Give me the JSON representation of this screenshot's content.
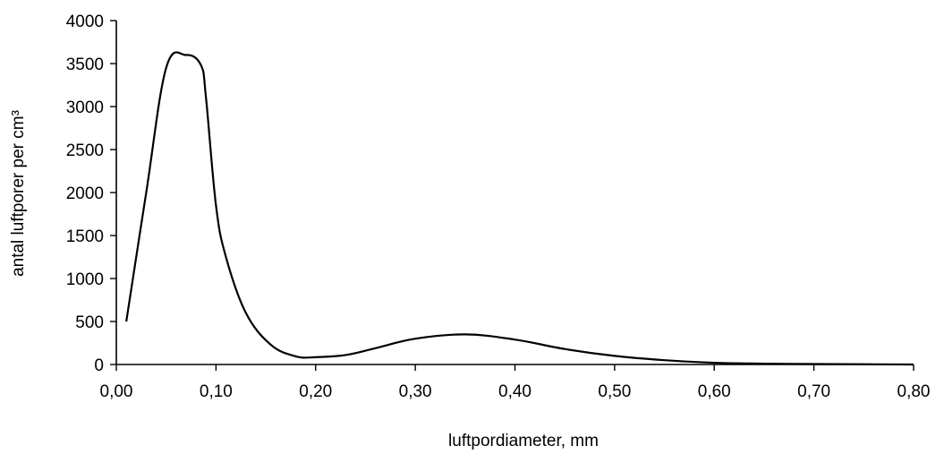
{
  "chart_data": {
    "type": "line",
    "title": "",
    "xlabel": "luftpordiameter, mm",
    "ylabel": "antal luftporer per cm³",
    "xlim": [
      0,
      0.8
    ],
    "ylim": [
      0,
      4000
    ],
    "x_ticks": [
      "0,00",
      "0,10",
      "0,20",
      "0,30",
      "0,40",
      "0,50",
      "0,60",
      "0,70",
      "0,80"
    ],
    "y_ticks": [
      "0",
      "500",
      "1000",
      "1500",
      "2000",
      "2500",
      "3000",
      "3500",
      "4000"
    ],
    "grid": false,
    "legend": "none",
    "line_color": "#000000",
    "series": [
      {
        "x": [
          0.01,
          0.03,
          0.05,
          0.07,
          0.085,
          0.09,
          0.1,
          0.11,
          0.13,
          0.155,
          0.18,
          0.2,
          0.23,
          0.26,
          0.3,
          0.35,
          0.4,
          0.45,
          0.5,
          0.55,
          0.6,
          0.65,
          0.7,
          0.75,
          0.8
        ],
        "values": [
          500,
          2000,
          3450,
          3600,
          3480,
          3100,
          1850,
          1250,
          600,
          230,
          95,
          85,
          110,
          190,
          300,
          350,
          290,
          180,
          100,
          50,
          20,
          10,
          5,
          3,
          0
        ]
      }
    ]
  }
}
